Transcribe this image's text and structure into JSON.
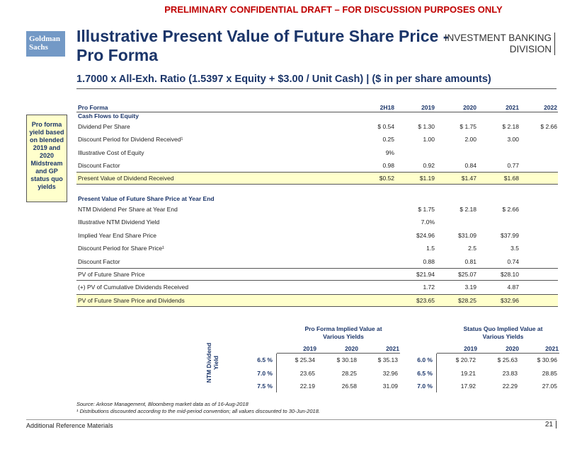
{
  "banner": "PRELIMINARY CONFIDENTIAL DRAFT – FOR DISCUSSION PURPOSES ONLY",
  "logo": [
    "Goldman",
    "Sachs"
  ],
  "title": [
    "Illustrative Present Value of Future Share Price -",
    "Pro Forma"
  ],
  "division": [
    "INVESTMENT BANKING",
    "DIVISION"
  ],
  "subtitle": "1.7000 x All-Exh. Ratio (1.5397 x Equity + $3.00 / Unit Cash) | ($ in per share amounts)",
  "sidebar": "Pro forma yield based on blended 2019 and 2020 Midstream and GP status quo yields",
  "table": {
    "header": [
      "Pro Forma",
      "2H18",
      "2019",
      "2020",
      "2021",
      "2022"
    ],
    "sections": [
      {
        "title": "Cash Flows to Equity",
        "rows": [
          [
            "Dividend Per Share",
            "$ 0.54",
            "$ 1.30",
            "$ 1.75",
            "$ 2.18",
            "$ 2.66"
          ],
          [
            "Discount Period for Dividend Received¹",
            "0.25",
            "1.00",
            "2.00",
            "3.00",
            null
          ],
          [
            "Illustrative Cost of Equity",
            "9%",
            null,
            null,
            null,
            null
          ],
          [
            "Discount Factor",
            "0.98",
            "0.92",
            "0.84",
            "0.77",
            null
          ],
          [
            "Present Value of Dividend Received",
            "$0.52",
            "$1.19",
            "$1.47",
            "$1.68",
            null
          ]
        ]
      },
      {
        "title": "Present Value of Future Share Price at Year End",
        "rows": [
          [
            "NTM Dividend Per Share at Year End",
            null,
            "$ 1.75",
            "$ 2.18",
            "$ 2.66",
            null
          ],
          [
            "Illustrative NTM Dividend Yield",
            null,
            "7.0%",
            null,
            null,
            null
          ],
          [
            "Implied Year End Share Price",
            null,
            "$24.96",
            "$31.09",
            "$37.99",
            null
          ],
          [
            "Discount Period for Share Price¹",
            null,
            "1.5",
            "2.5",
            "3.5",
            null
          ],
          [
            "Discount Factor",
            null,
            "0.88",
            "0.81",
            "0.74",
            null
          ],
          [
            "PV of Future Share Price",
            null,
            "$21.94",
            "$25.07",
            "$28.10",
            null
          ],
          [
            "(+) PV of Cumulative Dividends Received",
            null,
            "1.72",
            "3.19",
            "4.87",
            null
          ],
          [
            "PV of Future Share Price and Dividends",
            null,
            "$23.65",
            "$28.25",
            "$32.96",
            null
          ]
        ]
      }
    ]
  },
  "sensitivity": {
    "axis_label": "NTM Dividend Yield",
    "tables": [
      {
        "title": [
          "Pro Forma Implied Value at",
          "Various Yields"
        ],
        "years": [
          "2019",
          "2020",
          "2021"
        ],
        "rows": [
          [
            "6.5 %",
            "$ 25.34",
            "$ 30.18",
            "$ 35.13"
          ],
          [
            "7.0 %",
            "23.65",
            "28.25",
            "32.96"
          ],
          [
            "7.5 %",
            "22.19",
            "26.58",
            "31.09"
          ]
        ]
      },
      {
        "title": [
          "Status Quo Implied Value at",
          "Various Yields"
        ],
        "years": [
          "2019",
          "2020",
          "2021"
        ],
        "rows": [
          [
            "6.0 %",
            "$ 20.72",
            "$ 25.63",
            "$ 30.96"
          ],
          [
            "6.5 %",
            "19.21",
            "23.83",
            "28.85"
          ],
          [
            "7.0 %",
            "17.92",
            "22.29",
            "27.05"
          ]
        ]
      }
    ]
  },
  "footnotes": [
    "Source: Arkose Management, Bloomberg market data as of 16-Aug-2018",
    "¹ Distributions discounted according to the mid-period convention; all values discounted to 30-Jun-2018."
  ],
  "footer": {
    "section": "Additional Reference Materials",
    "page": "21"
  }
}
